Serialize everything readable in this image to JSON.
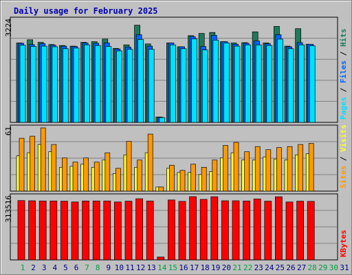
{
  "title": "Daily usage for February 2025",
  "colors": {
    "hits": "#1E7A5A",
    "files": "#0066FF",
    "pages": "#00E0FF",
    "visits": "#FFFF33",
    "sites": "#FF9900",
    "kbytes": "#FF0000",
    "background": "#C0C0C0",
    "title": "#0000B0",
    "weekday_label": "#000080",
    "weekend_label": "#00A040"
  },
  "chart_data": [
    {
      "type": "bar",
      "panel": "hits-files-pages",
      "ymax_label": "3224",
      "ylim": [
        0,
        3224
      ],
      "right_legend": [
        {
          "name": "Pages",
          "color": "#00E0FF"
        },
        {
          "name": "Files",
          "color": "#0066FF"
        },
        {
          "name": "Hits",
          "color": "#1E7A5A"
        }
      ],
      "categories": [
        "1",
        "2",
        "3",
        "4",
        "5",
        "6",
        "7",
        "8",
        "9",
        "10",
        "11",
        "12",
        "13",
        "14",
        "15",
        "16",
        "17",
        "18",
        "19",
        "20",
        "21",
        "22",
        "23",
        "24",
        "25",
        "26",
        "27",
        "28",
        "29",
        "30",
        "31"
      ],
      "series": [
        {
          "name": "Hits",
          "values": [
            2500,
            2600,
            2520,
            2450,
            2420,
            2400,
            2520,
            2540,
            2620,
            2330,
            2440,
            3060,
            2470,
            170,
            2500,
            2380,
            2730,
            2800,
            2830,
            2540,
            2500,
            2510,
            2850,
            2500,
            3020,
            2400,
            2950,
            2460,
            0,
            0,
            0
          ]
        },
        {
          "name": "Files",
          "values": [
            2490,
            2450,
            2480,
            2430,
            2400,
            2390,
            2500,
            2490,
            2500,
            2310,
            2370,
            2760,
            2400,
            160,
            2500,
            2380,
            2700,
            2390,
            2740,
            2540,
            2460,
            2490,
            2560,
            2480,
            2760,
            2380,
            2510,
            2460,
            0,
            0,
            0
          ]
        },
        {
          "name": "Pages",
          "values": [
            2430,
            2390,
            2400,
            2380,
            2320,
            2340,
            2440,
            2420,
            2390,
            2250,
            2300,
            2610,
            2300,
            150,
            2440,
            2320,
            2630,
            2280,
            2590,
            2500,
            2400,
            2440,
            2440,
            2420,
            2620,
            2320,
            2440,
            2410,
            0,
            0,
            0
          ]
        }
      ]
    },
    {
      "type": "bar",
      "panel": "visits-sites",
      "ymax_label": "61",
      "ylim": [
        0,
        61
      ],
      "right_legend": [
        {
          "name": "Sites",
          "color": "#FF9900"
        },
        {
          "name": "Visits",
          "color": "#FFFF33"
        }
      ],
      "categories": [
        "1",
        "2",
        "3",
        "4",
        "5",
        "6",
        "7",
        "8",
        "9",
        "10",
        "11",
        "12",
        "13",
        "14",
        "15",
        "16",
        "17",
        "18",
        "19",
        "20",
        "21",
        "22",
        "23",
        "24",
        "25",
        "26",
        "27",
        "28",
        "29",
        "30",
        "31"
      ],
      "series": [
        {
          "name": "Visits",
          "values": [
            34,
            37,
            45,
            38,
            23,
            24,
            26,
            23,
            30,
            17,
            35,
            23,
            37,
            4,
            22,
            18,
            18,
            16,
            19,
            32,
            37,
            30,
            30,
            33,
            31,
            30,
            35,
            36,
            0,
            0,
            0
          ]
        },
        {
          "name": "Sites",
          "values": [
            51,
            53,
            61,
            45,
            32,
            28,
            32,
            28,
            37,
            22,
            48,
            30,
            55,
            4,
            25,
            20,
            26,
            23,
            30,
            44,
            47,
            38,
            43,
            40,
            42,
            43,
            45,
            46,
            0,
            0,
            0
          ]
        }
      ]
    },
    {
      "type": "bar",
      "panel": "kbytes",
      "ymax_label": "313516",
      "ylim": [
        0,
        313516
      ],
      "right_legend": [
        {
          "name": "KBytes",
          "color": "#FF0000"
        }
      ],
      "categories": [
        "1",
        "2",
        "3",
        "4",
        "5",
        "6",
        "7",
        "8",
        "9",
        "10",
        "11",
        "12",
        "13",
        "14",
        "15",
        "16",
        "17",
        "18",
        "19",
        "20",
        "21",
        "22",
        "23",
        "24",
        "25",
        "26",
        "27",
        "28",
        "29",
        "30",
        "31"
      ],
      "series": [
        {
          "name": "KBytes",
          "values": [
            294000,
            293000,
            292000,
            292000,
            291000,
            287000,
            292000,
            292000,
            292000,
            287000,
            291000,
            303000,
            292000,
            14000,
            297000,
            290000,
            313516,
            300000,
            313000,
            293000,
            293000,
            292000,
            302000,
            291000,
            313000,
            287000,
            291000,
            290000,
            0,
            0,
            0
          ]
        }
      ]
    }
  ],
  "x_axis": {
    "days": [
      "1",
      "2",
      "3",
      "4",
      "5",
      "6",
      "7",
      "8",
      "9",
      "10",
      "11",
      "12",
      "13",
      "14",
      "15",
      "16",
      "17",
      "18",
      "19",
      "20",
      "21",
      "22",
      "23",
      "24",
      "25",
      "26",
      "27",
      "28",
      "29",
      "30",
      "31"
    ],
    "weekend": [
      true,
      false,
      false,
      false,
      false,
      false,
      true,
      true,
      false,
      false,
      false,
      false,
      false,
      true,
      true,
      false,
      false,
      false,
      false,
      false,
      true,
      true,
      false,
      false,
      false,
      false,
      false,
      true,
      true,
      true,
      false
    ]
  }
}
